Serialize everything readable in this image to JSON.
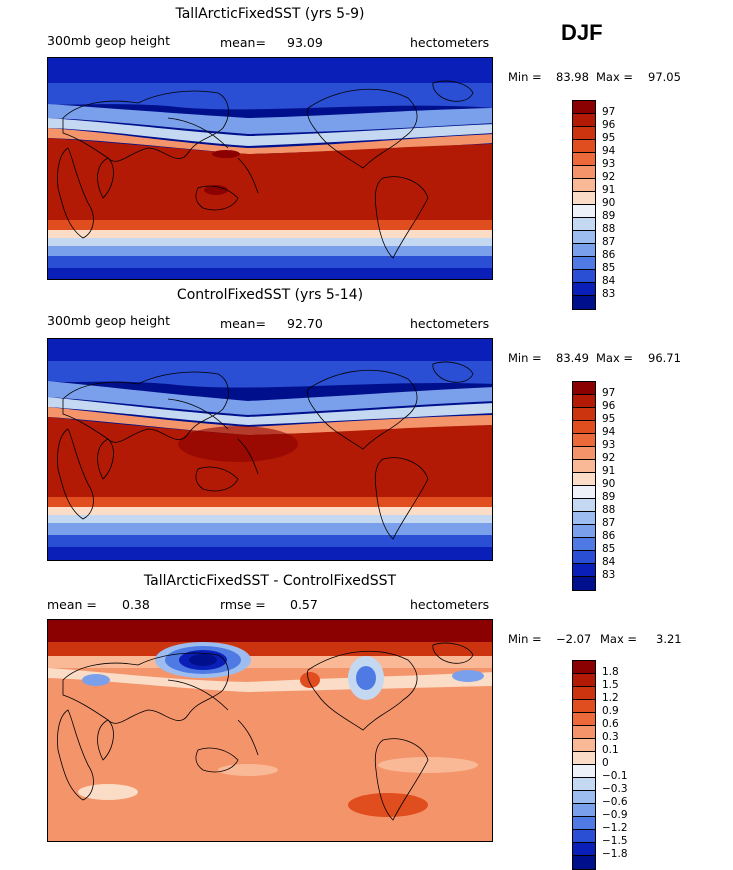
{
  "season": "DJF",
  "panels": [
    {
      "title": "TallArcticFixedSST (yrs 5-9)",
      "left_label": "300mb geop height",
      "mean_label": "mean=",
      "mean_value": "93.09",
      "units": "hectometers",
      "min_label": "Min =",
      "min_value": "83.98",
      "max_label": "Max =",
      "max_value": "97.05",
      "colorbar_labels": [
        "97",
        "96",
        "95",
        "94",
        "93",
        "92",
        "91",
        "90",
        "89",
        "88",
        "87",
        "86",
        "85",
        "84",
        "83"
      ]
    },
    {
      "title": "ControlFixedSST (yrs 5-14)",
      "left_label": "300mb geop height",
      "mean_label": "mean=",
      "mean_value": "92.70",
      "units": "hectometers",
      "min_label": "Min =",
      "min_value": "83.49",
      "max_label": "Max =",
      "max_value": "96.71",
      "colorbar_labels": [
        "97",
        "96",
        "95",
        "94",
        "93",
        "92",
        "91",
        "90",
        "89",
        "88",
        "87",
        "86",
        "85",
        "84",
        "83"
      ]
    },
    {
      "title": "TallArcticFixedSST - ControlFixedSST",
      "left_label": "mean =",
      "mean_label": "",
      "mean_value": "0.38",
      "rmse_label": "rmse =",
      "rmse_value": "0.57",
      "units": "hectometers",
      "min_label": "Min =",
      "min_value": "−2.07",
      "max_label": "Max =",
      "max_value": "3.21",
      "colorbar_labels": [
        "1.8",
        "1.5",
        "1.2",
        "0.9",
        "0.6",
        "0.3",
        "0.1",
        "0",
        "−0.1",
        "−0.3",
        "−0.6",
        "−0.9",
        "−1.2",
        "−1.5",
        "−1.8"
      ]
    }
  ],
  "palette": [
    "#8b0000",
    "#b21a05",
    "#cc3410",
    "#e04d1e",
    "#ec6a3a",
    "#f4946a",
    "#f9b996",
    "#fbdcc6",
    "#eef2f8",
    "#c4d8f2",
    "#9dbdf0",
    "#7aa0ec",
    "#4f7ae4",
    "#2a4ed4",
    "#0a1fb8",
    "#00108c"
  ]
}
